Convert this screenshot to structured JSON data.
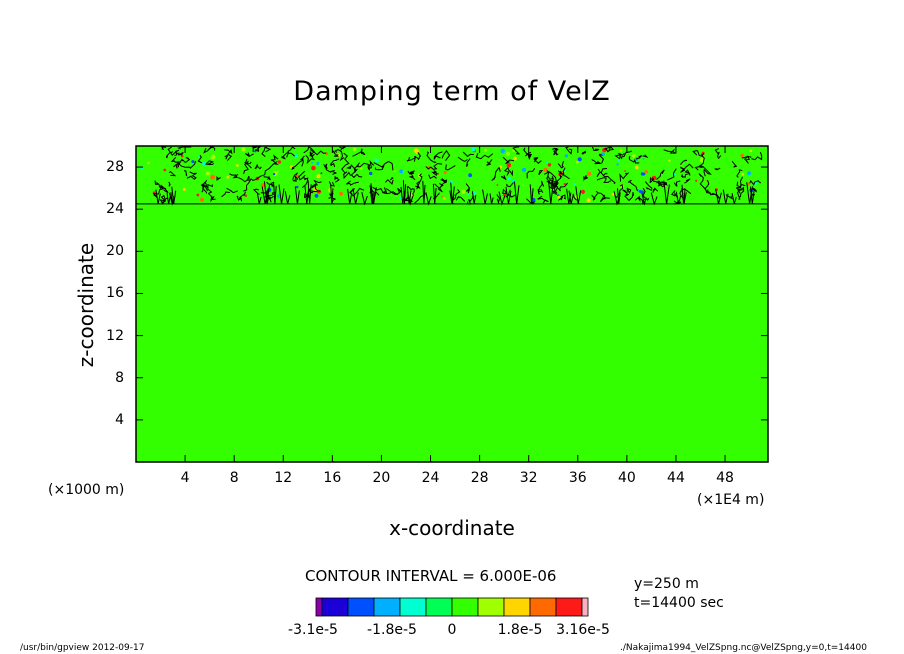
{
  "chart_data": {
    "type": "heatmap",
    "title": "Damping term of VelZ",
    "xlabel": "x-coordinate",
    "ylabel": "z-coordinate",
    "x_unit_left": "(×1000 m)",
    "x_unit_right": "(×1E4 m)",
    "xlim": [
      0,
      51.5
    ],
    "ylim": [
      0,
      30
    ],
    "x_ticks": [
      "4",
      "8",
      "12",
      "16",
      "20",
      "24",
      "28",
      "32",
      "36",
      "40",
      "44",
      "48"
    ],
    "x_tick_values": [
      4,
      8,
      12,
      16,
      20,
      24,
      28,
      32,
      36,
      40,
      44,
      48
    ],
    "y_ticks": [
      "4",
      "8",
      "12",
      "16",
      "20",
      "24",
      "28"
    ],
    "y_tick_values": [
      4,
      8,
      12,
      16,
      20,
      24,
      28
    ],
    "fields": [
      {
        "region": "z 0–24.5",
        "value": 0,
        "color": "#33ff00"
      },
      {
        "region": "z 24.5–30",
        "value": "fluctuating",
        "color": "#33ff00"
      }
    ],
    "noise_zone_z": [
      24.5,
      30
    ],
    "contour_interval": "CONTOUR INTERVAL = 6.000E-06",
    "colorbar": {
      "colors": [
        "#8b00a8",
        "#1c00d8",
        "#0050ff",
        "#00b0ff",
        "#00ffd0",
        "#00ff55",
        "#33ff00",
        "#a0ff00",
        "#ffd500",
        "#ff6a00",
        "#ff1a1a",
        "#ffb0c0"
      ],
      "labels": [
        "-3.1e-5",
        "-1.8e-5",
        "0",
        "1.8e-5",
        "3.16e-5"
      ]
    }
  },
  "annotations": {
    "y_info": "y=250 m",
    "t_info": "t=14400 sec"
  },
  "footer": {
    "left": "/usr/bin/gpview   2012-09-17",
    "right": "./Nakajima1994_VelZSpng.nc@VelZSpng,y=0,t=14400"
  }
}
